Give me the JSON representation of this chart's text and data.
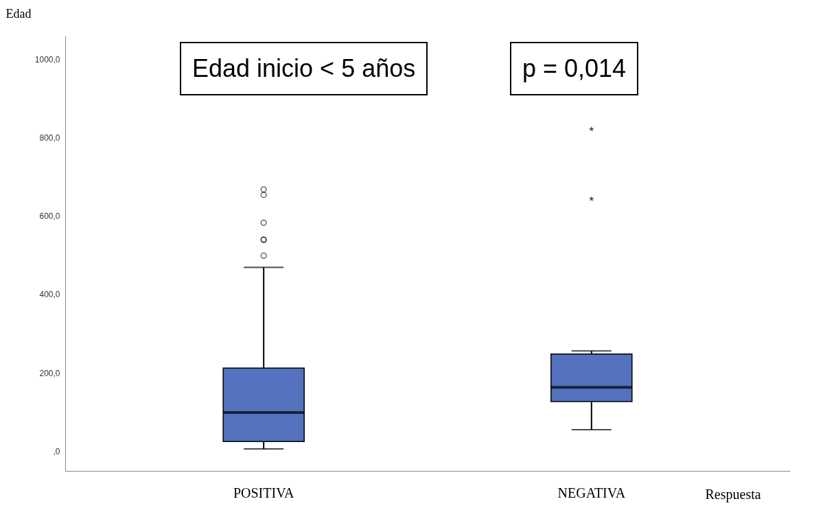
{
  "chart_data": {
    "type": "box",
    "categories": [
      "POSITIVA",
      "NEGATIVA"
    ],
    "xlabel": "Respuesta",
    "ylabel": "Edad",
    "ylim": [
      -50,
      1060
    ],
    "yticks": [
      {
        "value": 0,
        "label": ",0"
      },
      {
        "value": 200,
        "label": "200,0"
      },
      {
        "value": 400,
        "label": "400,0"
      },
      {
        "value": 600,
        "label": "600,0"
      },
      {
        "value": 800,
        "label": "800,0"
      },
      {
        "value": 1000,
        "label": "1000,0"
      }
    ],
    "annotations": [
      "Edad inicio < 5 años",
      "p = 0,014"
    ],
    "series": [
      {
        "color": "#5572be",
        "marker": "circle",
        "boxes": [
          {
            "low": 6,
            "q1": 25,
            "median": 99,
            "q3": 212,
            "high": 469,
            "outliers": [
              499,
              539,
              540,
              583,
              654,
              668
            ]
          },
          null
        ]
      },
      {
        "color": "#5572be",
        "marker": "star",
        "boxes": [
          null,
          {
            "low": 55,
            "q1": 127,
            "median": 163,
            "q3": 248,
            "high": 256,
            "outliers": [
              644,
              822
            ]
          }
        ]
      }
    ]
  }
}
